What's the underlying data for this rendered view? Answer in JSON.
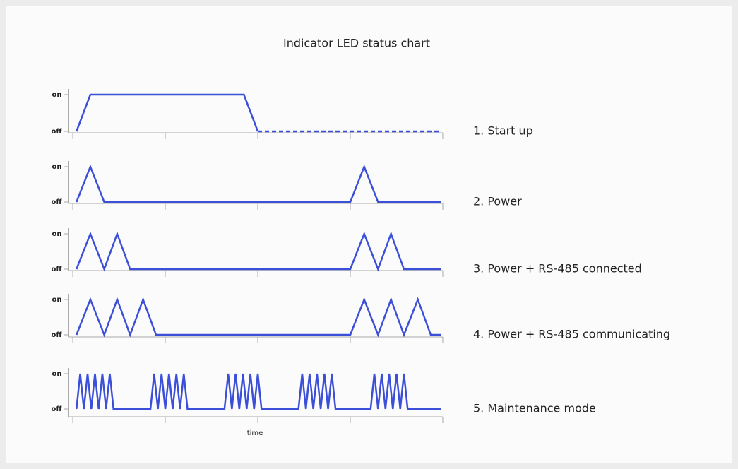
{
  "title": "Indicator LED status chart",
  "xlabel": "time",
  "chart_data": [
    {
      "type": "line",
      "title": "1. Start up",
      "xlim": [
        -0.05,
        4.0
      ],
      "xticks": [
        0,
        1,
        2,
        3,
        4
      ],
      "ylim": [
        0,
        1
      ],
      "yticks": [
        {
          "value": 0,
          "label": "off"
        },
        {
          "value": 1,
          "label": "on"
        }
      ],
      "series": [
        {
          "color": "#3b4fd8",
          "dash": false,
          "x": [
            0.04,
            0.19,
            1.85,
            2.0
          ],
          "values": [
            0,
            1,
            1,
            0
          ]
        },
        {
          "color": "#3b4fd8",
          "dash": true,
          "x": [
            2.0,
            3.98
          ],
          "values": [
            0,
            0
          ]
        }
      ]
    },
    {
      "type": "line",
      "title": "2. Power",
      "xlim": [
        -0.05,
        4.0
      ],
      "xticks": [
        0,
        1,
        2,
        3,
        4
      ],
      "ylim": [
        0,
        1
      ],
      "yticks": [
        {
          "value": 0,
          "label": "off"
        },
        {
          "value": 1,
          "label": "on"
        }
      ],
      "series": [
        {
          "color": "#3b4fd8",
          "dash": false,
          "x": [
            0.04,
            0.19,
            0.34,
            3.0,
            3.15,
            3.3,
            3.98
          ],
          "values": [
            0,
            1,
            0,
            0,
            1,
            0,
            0
          ]
        }
      ]
    },
    {
      "type": "line",
      "title": "3. Power + RS-485 connected",
      "xlim": [
        -0.05,
        4.0
      ],
      "xticks": [
        0,
        1,
        2,
        3,
        4
      ],
      "ylim": [
        0,
        1
      ],
      "yticks": [
        {
          "value": 0,
          "label": "off"
        },
        {
          "value": 1,
          "label": "on"
        }
      ],
      "series": [
        {
          "color": "#3b4fd8",
          "dash": false,
          "x": [
            0.04,
            0.19,
            0.34,
            0.48,
            0.62,
            3.0,
            3.15,
            3.3,
            3.44,
            3.58,
            3.98
          ],
          "values": [
            0,
            1,
            0,
            1,
            0,
            0,
            1,
            0,
            1,
            0,
            0
          ]
        }
      ]
    },
    {
      "type": "line",
      "title": "4. Power + RS-485 communicating",
      "xlim": [
        -0.05,
        4.0
      ],
      "xticks": [
        0,
        1,
        2,
        3,
        4
      ],
      "ylim": [
        0,
        1
      ],
      "yticks": [
        {
          "value": 0,
          "label": "off"
        },
        {
          "value": 1,
          "label": "on"
        }
      ],
      "series": [
        {
          "color": "#3b4fd8",
          "dash": false,
          "x": [
            0.04,
            0.19,
            0.34,
            0.48,
            0.62,
            0.76,
            0.9,
            3.0,
            3.15,
            3.3,
            3.44,
            3.58,
            3.73,
            3.87,
            3.98
          ],
          "values": [
            0,
            1,
            0,
            1,
            0,
            1,
            0,
            0,
            1,
            0,
            1,
            0,
            1,
            0,
            0
          ]
        }
      ]
    },
    {
      "type": "line",
      "title": "5. Maintenance mode",
      "xlim": [
        -0.05,
        4.0
      ],
      "xticks": [
        0,
        1,
        2,
        3,
        4
      ],
      "ylim": [
        0,
        1
      ],
      "yticks": [
        {
          "value": 0,
          "label": "off"
        },
        {
          "value": 1,
          "label": "on"
        }
      ],
      "series": [
        {
          "color": "#3b4fd8",
          "dash": false,
          "x": [
            0.04,
            0.08,
            0.12,
            0.16,
            0.2,
            0.24,
            0.28,
            0.32,
            0.36,
            0.4,
            0.44,
            0.84,
            0.88,
            0.92,
            0.96,
            1.0,
            1.04,
            1.08,
            1.12,
            1.16,
            1.2,
            1.24,
            1.64,
            1.68,
            1.72,
            1.76,
            1.8,
            1.84,
            1.88,
            1.92,
            1.96,
            2.0,
            2.04,
            2.44,
            2.48,
            2.52,
            2.56,
            2.6,
            2.64,
            2.68,
            2.72,
            2.76,
            2.8,
            2.84,
            3.22,
            3.26,
            3.3,
            3.34,
            3.38,
            3.42,
            3.46,
            3.5,
            3.54,
            3.58,
            3.62,
            3.98
          ],
          "values": [
            0,
            1,
            0,
            1,
            0,
            1,
            0,
            1,
            0,
            1,
            0,
            0,
            1,
            0,
            1,
            0,
            1,
            0,
            1,
            0,
            1,
            0,
            0,
            1,
            0,
            1,
            0,
            1,
            0,
            1,
            0,
            1,
            0,
            0,
            1,
            0,
            1,
            0,
            1,
            0,
            1,
            0,
            1,
            0,
            0,
            1,
            0,
            1,
            0,
            1,
            0,
            1,
            0,
            1,
            0,
            0
          ]
        }
      ]
    }
  ]
}
